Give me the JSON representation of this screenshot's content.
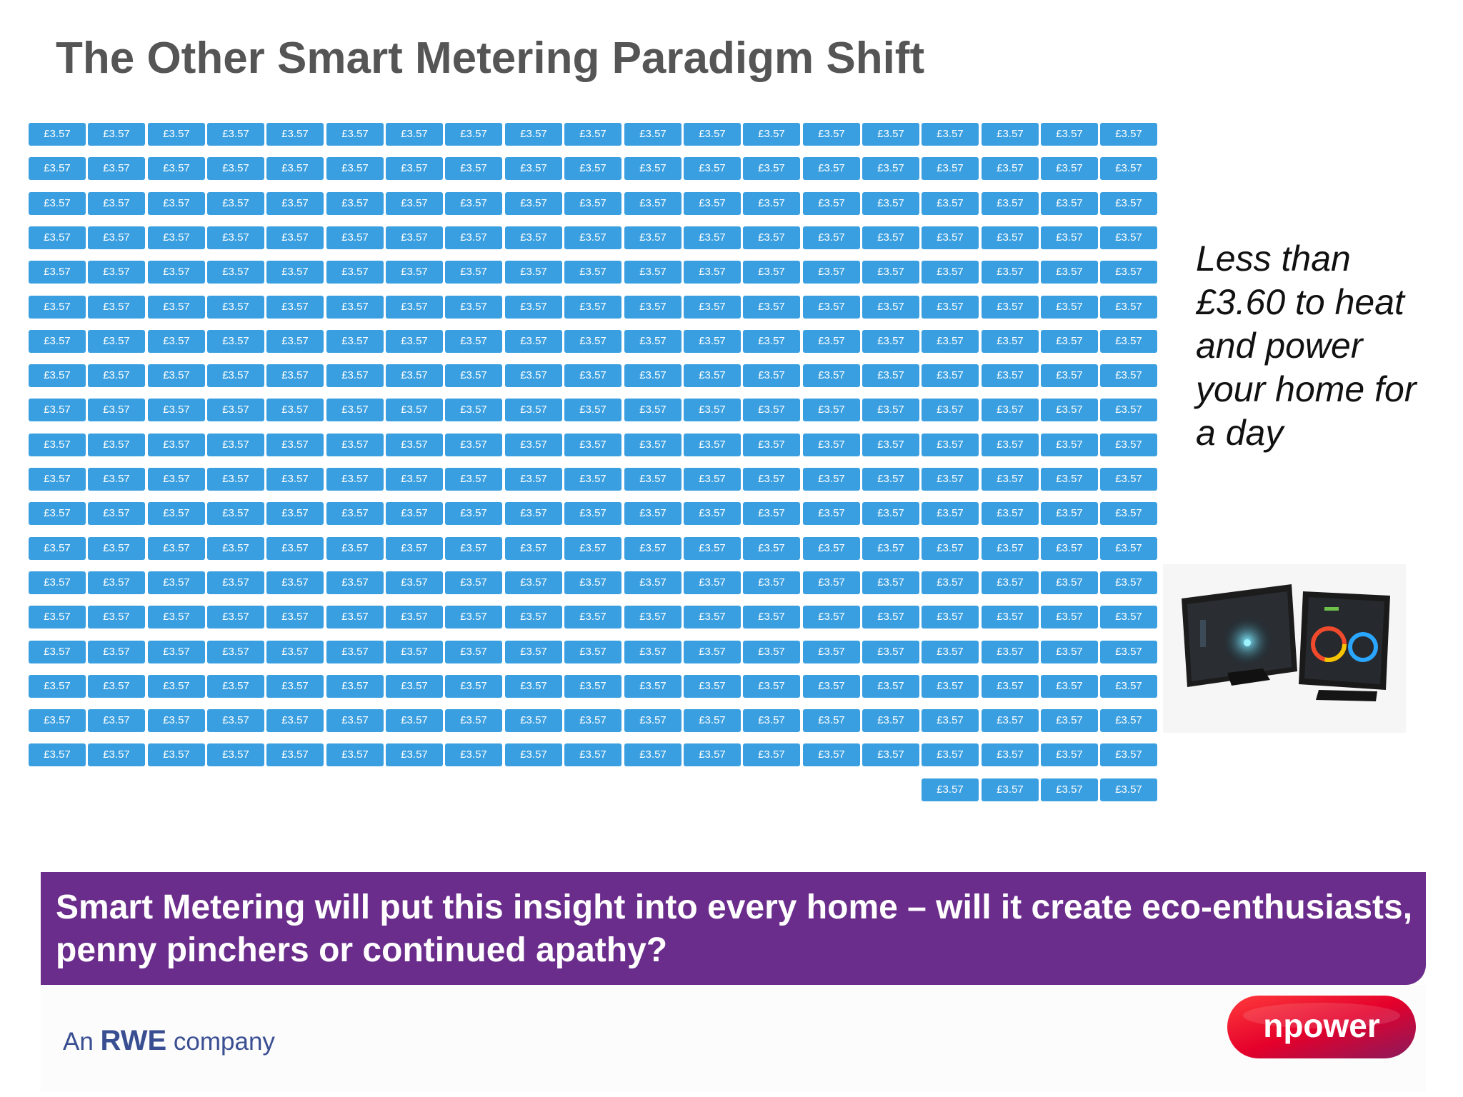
{
  "slide": {
    "title": "The Other Smart Metering Paradigm Shift"
  },
  "tiles": {
    "label": "£3.57",
    "columns": 19,
    "full_rows": 19,
    "last_row_count": 4
  },
  "side_text": "Less than £3.60 to heat and power your home for a day",
  "banner": {
    "text": "Smart Metering will put this insight into every home – will it create eco-enthusiasts, penny pinchers or continued apathy?"
  },
  "footer": {
    "rwe_prefix": "An",
    "rwe_brand": "RWE",
    "rwe_suffix": "company",
    "npower_logo_text": "npower"
  },
  "colors": {
    "tile": "#3a9fe0",
    "banner": "#6b2d8b",
    "title": "#555555",
    "rwe": "#3a4f92",
    "npower_red": "#e4002b"
  }
}
